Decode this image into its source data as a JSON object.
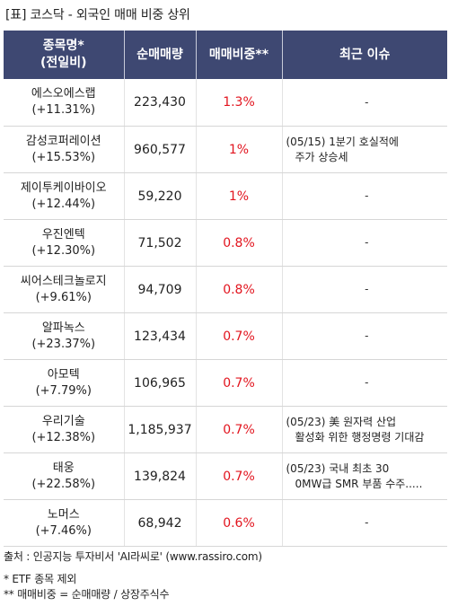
{
  "title": "[표] 코스닥 - 외국인 매매 비중 상위",
  "headers": {
    "name_line1": "종목명*",
    "name_line2": "(전일비)",
    "volume": "순매매량",
    "ratio": "매매비중**",
    "issue": "최근 이슈"
  },
  "rows": [
    {
      "name": "에스오에스랩",
      "change": "(+11.31%)",
      "volume": "223,430",
      "ratio": "1.3%",
      "issue_line1": "-",
      "issue_line2": ""
    },
    {
      "name": "감성코퍼레이션",
      "change": "(+15.53%)",
      "volume": "960,577",
      "ratio": "1%",
      "issue_line1": "(05/15) 1분기 호실적에",
      "issue_line2": "주가 상승세"
    },
    {
      "name": "제이투케이바이오",
      "change": "(+12.44%)",
      "volume": "59,220",
      "ratio": "1%",
      "issue_line1": "-",
      "issue_line2": ""
    },
    {
      "name": "우진엔텍",
      "change": "(+12.30%)",
      "volume": "71,502",
      "ratio": "0.8%",
      "issue_line1": "-",
      "issue_line2": ""
    },
    {
      "name": "씨어스테크놀로지",
      "change": "(+9.61%)",
      "volume": "94,709",
      "ratio": "0.8%",
      "issue_line1": "-",
      "issue_line2": ""
    },
    {
      "name": "알파녹스",
      "change": "(+23.37%)",
      "volume": "123,434",
      "ratio": "0.7%",
      "issue_line1": "-",
      "issue_line2": ""
    },
    {
      "name": "아모텍",
      "change": "(+7.79%)",
      "volume": "106,965",
      "ratio": "0.7%",
      "issue_line1": "-",
      "issue_line2": ""
    },
    {
      "name": "우리기술",
      "change": "(+12.38%)",
      "volume": "1,185,937",
      "ratio": "0.7%",
      "issue_line1": "(05/23) 美 원자력 산업",
      "issue_line2": "활성화 위한 행정명령 기대감"
    },
    {
      "name": "태웅",
      "change": "(+22.58%)",
      "volume": "139,824",
      "ratio": "0.7%",
      "issue_line1": "(05/23) 국내 최초 30",
      "issue_line2": "0MW급 SMR 부품 수주....."
    },
    {
      "name": "노머스",
      "change": "(+7.46%)",
      "volume": "68,942",
      "ratio": "0.6%",
      "issue_line1": "-",
      "issue_line2": ""
    }
  ],
  "footer": {
    "source": "출처 : 인공지능 투자비서 'AI라씨로' (www.rassiro.com)",
    "note1": "* ETF 종목 제외",
    "note2": "** 매매비중 = 순매매량 / 상장주식수"
  }
}
